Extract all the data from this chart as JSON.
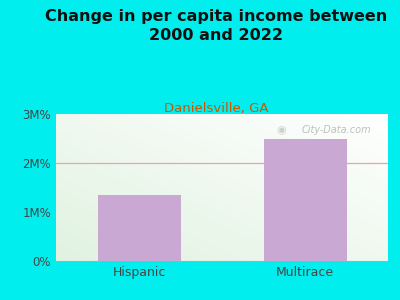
{
  "title": "Change in per capita income between\n2000 and 2022",
  "subtitle": "Danielsville, GA",
  "categories": [
    "Hispanic",
    "Multirace"
  ],
  "values": [
    1350000,
    2480000
  ],
  "bar_color": "#C9A8D4",
  "background_color": "#00EEEE",
  "title_fontsize": 11.5,
  "subtitle_fontsize": 9.5,
  "subtitle_color": "#CC5500",
  "tick_color": "#444444",
  "ytick_labels": [
    "0%",
    "1M%",
    "2M%",
    "3M%"
  ],
  "ytick_values": [
    0,
    1000000,
    2000000,
    3000000
  ],
  "ylim": [
    0,
    3000000
  ],
  "gridline_color": "#F0A0A8",
  "watermark": "City-Data.com",
  "watermark_color": "#b0b8b0"
}
